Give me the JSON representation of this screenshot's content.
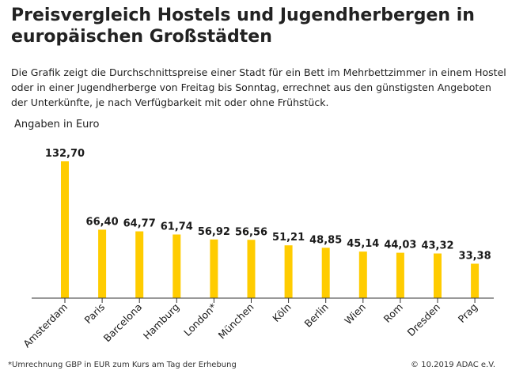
{
  "title": "Preisvergleich Hostels und Jugendherbergen in europäischen Großstädten",
  "subtitle": "Die Grafik zeigt die Durchschnittspreise einer Stadt für ein Bett im Mehrbettzimmer in einem Hostel oder in einer Jugendherberge von Freitag bis Sonntag, errechnet aus den günstigsten Angeboten der Unterkünfte, je nach Verfügbarkeit mit oder ohne Frühstück.",
  "unit_label": "Angaben in Euro",
  "footnote": "*Umrechnung GBP in EUR zum Kurs am Tag der Erhebung",
  "copyright": "© 10.2019  ADAC e.V.",
  "colors": {
    "bar": "#ffcc00",
    "axis": "#333333"
  },
  "chart_data": {
    "type": "bar",
    "categories": [
      "Amsterdam",
      "Paris",
      "Barcelona",
      "Hamburg",
      "London*",
      "München",
      "Köln",
      "Berlin",
      "Wien",
      "Rom",
      "Dresden",
      "Prag"
    ],
    "values": [
      132.7,
      66.4,
      64.77,
      61.74,
      56.92,
      56.56,
      51.21,
      48.85,
      45.14,
      44.03,
      43.32,
      33.38
    ],
    "value_labels": [
      "132,70",
      "66,40",
      "64,77",
      "61,74",
      "56,92",
      "56,56",
      "51,21",
      "48,85",
      "45,14",
      "44,03",
      "43,32",
      "33,38"
    ],
    "ylabel": "Angaben in Euro",
    "ylim": [
      0,
      132.7
    ],
    "grid": false,
    "legend": "none"
  }
}
